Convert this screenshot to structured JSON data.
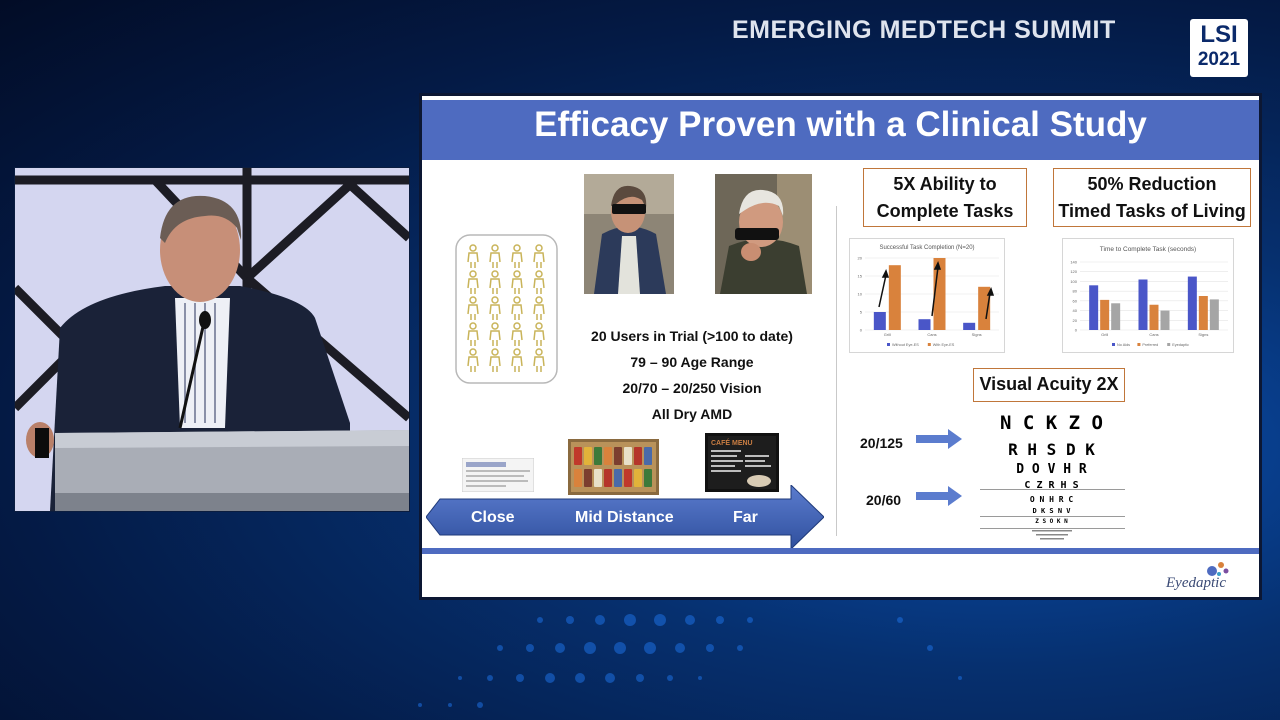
{
  "event": {
    "title": "EMERGING MEDTECH SUMMIT",
    "logo_line1": "LSI",
    "logo_line2": "2021"
  },
  "slide": {
    "title": "Efficacy Proven with a Clinical Study",
    "stats": [
      "20 Users in Trial (>100 to date)",
      "79 – 90 Age Range",
      "20/70 – 20/250 Vision",
      "All Dry AMD"
    ],
    "arrow_labels": [
      "Close",
      "Mid Distance",
      "Far"
    ],
    "cafe_sign": "CAFÉ MENU",
    "box1_line1": "5X Ability to",
    "box1_line2": "Complete Tasks",
    "box2_line1": "50% Reduction",
    "box2_line2": "Timed Tasks of Living",
    "visual_acuity_title": "Visual Acuity 2X",
    "acuity_labels": [
      "20/125",
      "20/60"
    ],
    "eye_chart_rows": [
      "N C K Z O",
      "R H S D K",
      "D O V H R",
      "C Z R H S",
      "O N H R C",
      "D K S N V",
      "Z S O K N"
    ],
    "brand": "Eyedaptic",
    "colors": {
      "header_blue": "#4e6bc0",
      "bar_blue": "#4a56c8",
      "bar_orange": "#d9823c",
      "bar_gray": "#a5a5a5",
      "box_border": "#c0763a",
      "person_icon": "#c9b45a"
    }
  },
  "chart_data": [
    {
      "type": "bar",
      "title": "Successful Task Completion (N=20)",
      "categories": [
        "Grill",
        "Cans",
        "Signs"
      ],
      "series": [
        {
          "name": "Without Eye-ES",
          "values": [
            5,
            3,
            2
          ]
        },
        {
          "name": "With Eye-ES",
          "values": [
            18,
            20,
            12
          ]
        }
      ],
      "ylim": [
        0,
        20
      ],
      "yticks": [
        "0",
        "5",
        "10",
        "15",
        "20"
      ],
      "legend": "bottom"
    },
    {
      "type": "bar",
      "title": "Time to Complete Task (seconds)",
      "categories": [
        "Grill",
        "Cans",
        "Signs"
      ],
      "series": [
        {
          "name": "No Aids",
          "values": [
            92,
            104,
            110
          ]
        },
        {
          "name": "Preferred",
          "values": [
            62,
            52,
            70
          ]
        },
        {
          "name": "Eyedaptic",
          "values": [
            55,
            40,
            63
          ]
        }
      ],
      "ylim": [
        0,
        140
      ],
      "yticks": [
        "0",
        "20",
        "40",
        "60",
        "80",
        "100",
        "120",
        "140"
      ],
      "legend": "bottom"
    }
  ]
}
